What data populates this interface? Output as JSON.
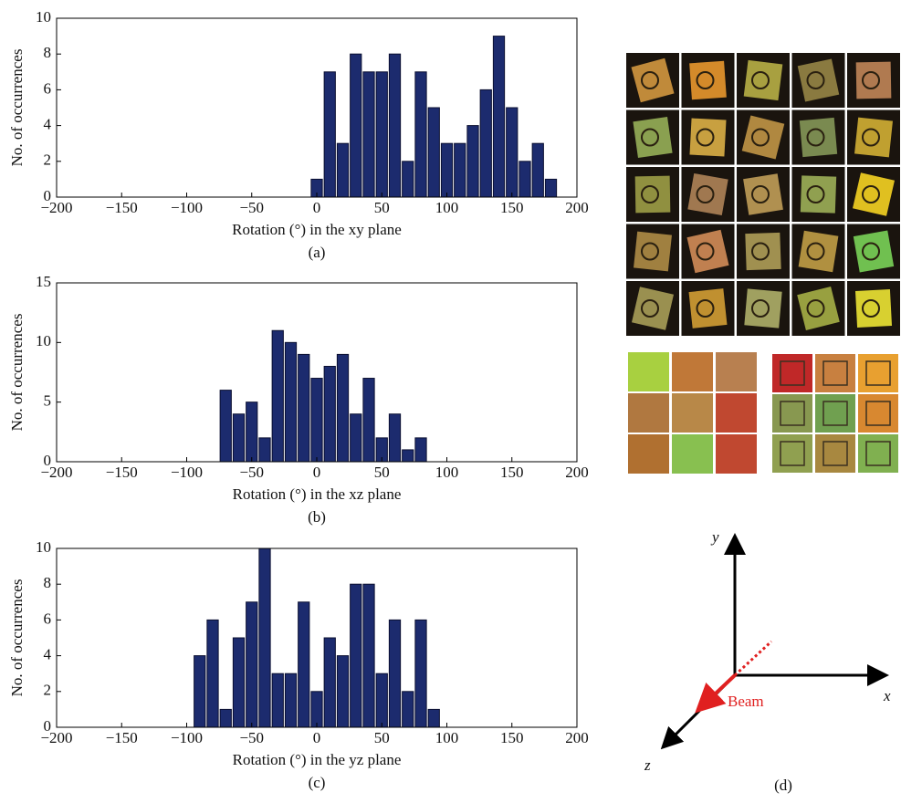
{
  "chart_data": [
    {
      "type": "histogram",
      "y_label": "No. of occurrences",
      "x_label": "Rotation (°) in the xy plane",
      "caption": "(a)",
      "bins": [
        -5,
        5,
        15,
        25,
        35,
        45,
        55,
        65,
        75,
        85,
        95,
        105,
        115,
        125,
        135,
        145,
        155,
        165,
        175,
        185
      ],
      "values": [
        1,
        7,
        3,
        8,
        7,
        7,
        8,
        2,
        7,
        5,
        3,
        3,
        4,
        6,
        9,
        5,
        2,
        3,
        1
      ],
      "color": "#1c2b6e",
      "xlim": [
        -200,
        200
      ],
      "xticks": [
        {
          "value": -200,
          "label": "−200"
        },
        {
          "value": -150,
          "label": "−150"
        },
        {
          "value": -100,
          "label": "−100"
        },
        {
          "value": -50,
          "label": "−50"
        },
        0,
        50,
        100,
        150,
        200
      ],
      "ylim": [
        0,
        10
      ],
      "yticks": [
        0,
        2,
        4,
        6,
        8,
        10
      ]
    },
    {
      "type": "histogram",
      "y_label": "No. of occurrences",
      "x_label": "Rotation (°) in the xz plane",
      "caption": "(b)",
      "bins": [
        -75,
        -65,
        -55,
        -45,
        -35,
        -25,
        -15,
        -5,
        5,
        15,
        25,
        35,
        45,
        55,
        65,
        75,
        85
      ],
      "values": [
        6,
        4,
        5,
        2,
        11,
        10,
        9,
        7,
        8,
        9,
        4,
        7,
        2,
        4,
        1,
        2
      ],
      "color": "#1c2b6e",
      "xlim": [
        -200,
        200
      ],
      "xticks": [
        {
          "value": -200,
          "label": "−200"
        },
        {
          "value": -150,
          "label": "−150"
        },
        {
          "value": -100,
          "label": "−100"
        },
        {
          "value": -50,
          "label": "−50"
        },
        0,
        50,
        100,
        150,
        200
      ],
      "ylim": [
        0,
        15
      ],
      "yticks": [
        0,
        5,
        10,
        15
      ]
    },
    {
      "type": "histogram",
      "y_label": "No. of occurrences",
      "x_label": "Rotation (°) in the yz plane",
      "caption": "(c)",
      "bins": [
        -95,
        -85,
        -75,
        -65,
        -55,
        -45,
        -35,
        -25,
        -15,
        -5,
        5,
        15,
        25,
        35,
        45,
        55,
        65,
        75,
        85,
        95
      ],
      "values": [
        4,
        6,
        1,
        5,
        7,
        10,
        3,
        3,
        7,
        2,
        5,
        4,
        8,
        8,
        3,
        6,
        2,
        6,
        1
      ],
      "color": "#1c2b6e",
      "xlim": [
        -200,
        200
      ],
      "xticks": [
        {
          "value": -200,
          "label": "−200"
        },
        {
          "value": -150,
          "label": "−150"
        },
        {
          "value": -100,
          "label": "−100"
        },
        {
          "value": -50,
          "label": "−50"
        },
        0,
        50,
        100,
        150,
        200
      ],
      "ylim": [
        0,
        10
      ],
      "yticks": [
        0,
        2,
        4,
        6,
        8,
        10
      ]
    }
  ],
  "panel_d": {
    "y_axis": "y",
    "x_axis": "x",
    "z_axis": "z",
    "beam": "Beam",
    "caption": "(d)"
  }
}
